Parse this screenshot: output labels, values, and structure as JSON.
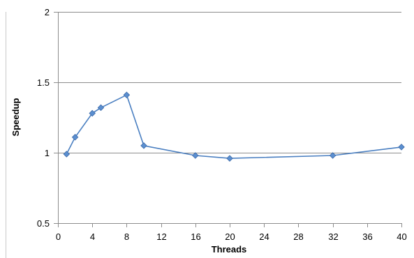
{
  "chart_data": {
    "type": "line",
    "xlabel": "Threads",
    "ylabel": "Speedup",
    "xlim": [
      0,
      40
    ],
    "ylim": [
      0.5,
      2
    ],
    "xticks": [
      0,
      4,
      8,
      12,
      16,
      20,
      24,
      28,
      32,
      36,
      40
    ],
    "yticks": [
      0.5,
      1,
      1.5,
      2
    ],
    "xtick_labels": [
      "0",
      "4",
      "8",
      "12",
      "16",
      "20",
      "24",
      "28",
      "32",
      "36",
      "40"
    ],
    "ytick_labels": [
      "0.5",
      "1",
      "1.5",
      "2"
    ],
    "grid": "horizontal",
    "series": [
      {
        "color": "#4a7fc1",
        "marker_color": "#5b8fd0",
        "marker": "diamond",
        "points": [
          {
            "x": 1,
            "y": 0.99
          },
          {
            "x": 2,
            "y": 1.11
          },
          {
            "x": 4,
            "y": 1.28
          },
          {
            "x": 5,
            "y": 1.32
          },
          {
            "x": 8,
            "y": 1.41
          },
          {
            "x": 10,
            "y": 1.05
          },
          {
            "x": 16,
            "y": 0.98
          },
          {
            "x": 20,
            "y": 0.96
          },
          {
            "x": 32,
            "y": 0.98
          },
          {
            "x": 40,
            "y": 1.04
          }
        ]
      }
    ]
  }
}
